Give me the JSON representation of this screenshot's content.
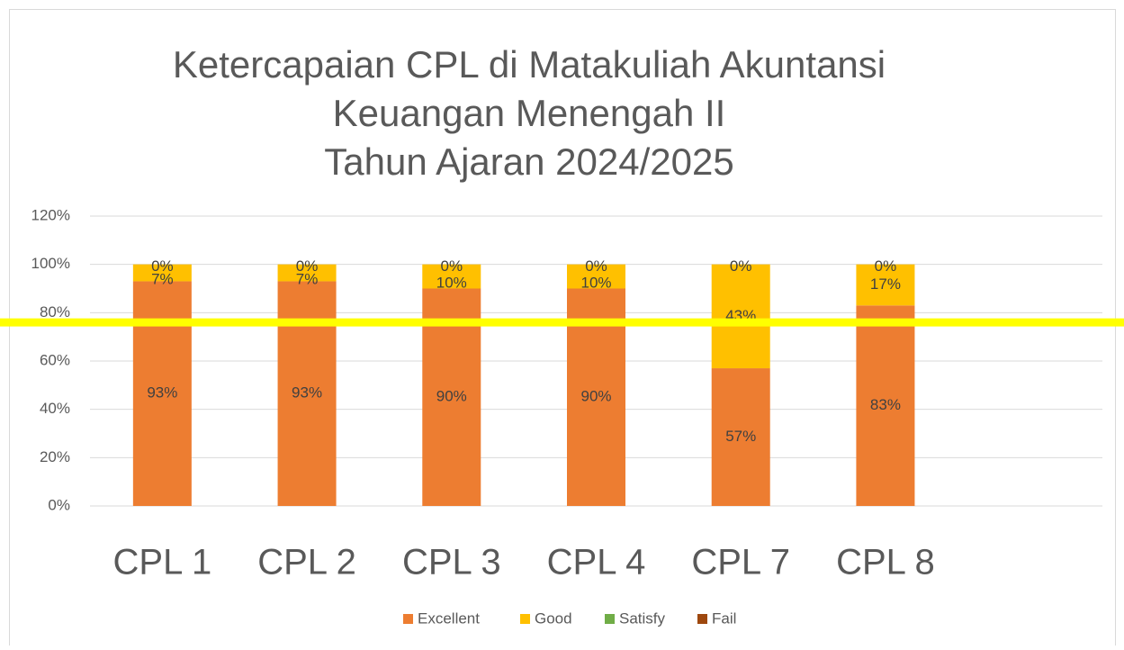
{
  "chart_data": {
    "type": "stacked_bar",
    "title": [
      "Ketercapaian CPL di Matakuliah Akuntansi",
      "Keuangan Menengah II",
      "Tahun Ajaran 2024/2025"
    ],
    "categories": [
      "CPL 1",
      "CPL 2",
      "CPL 3",
      "CPL 4",
      "CPL 7",
      "CPL 8",
      null
    ],
    "series": [
      {
        "name": "Excellent",
        "color": "#ed7d31",
        "values": [
          93,
          93,
          90,
          90,
          57,
          83,
          null
        ],
        "value_labels": [
          "93%",
          "93%",
          "90%",
          "90%",
          "57%",
          "83%",
          null
        ]
      },
      {
        "name": "Good",
        "color": "#ffc000",
        "values": [
          7,
          7,
          10,
          10,
          43,
          17,
          null
        ],
        "value_labels": [
          "7%",
          "7%",
          "10%",
          "10%",
          "43%",
          "17%",
          null
        ]
      },
      {
        "name": "Satisfy",
        "color": "#70ad47",
        "values": [
          0,
          0,
          0,
          0,
          0,
          0,
          null
        ],
        "value_labels": [
          "0%",
          "0%",
          "0%",
          "0%",
          "0%",
          "0%",
          null
        ]
      },
      {
        "name": "Fail",
        "color": "#9e480e",
        "values": [
          0,
          0,
          0,
          0,
          0,
          0,
          null
        ]
      }
    ],
    "ylim": [
      0,
      120
    ],
    "yticks": [
      {
        "value": 0,
        "label": "0%"
      },
      {
        "value": 20,
        "label": "20%"
      },
      {
        "value": 40,
        "label": "40%"
      },
      {
        "value": 60,
        "label": "60%"
      },
      {
        "value": 80,
        "label": "80%"
      },
      {
        "value": 100,
        "label": "100%"
      },
      {
        "value": 120,
        "label": "120%"
      }
    ],
    "grid": true,
    "legend": "bottom",
    "reference_line": {
      "value": 76,
      "color": "#ffff00"
    }
  }
}
